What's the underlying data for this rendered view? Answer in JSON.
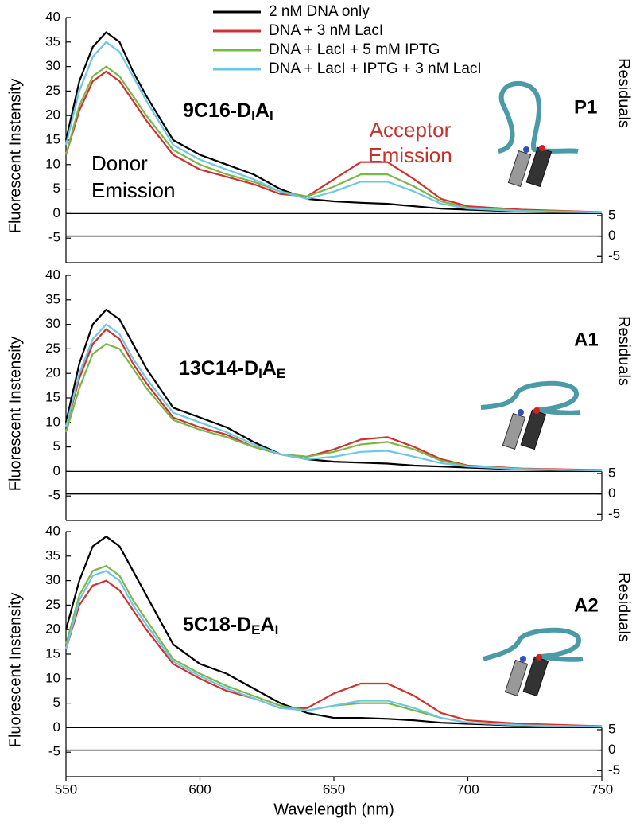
{
  "chart_data": [
    {
      "type": "line",
      "label": [
        "9C16-D",
        "I",
        "A",
        "I"
      ],
      "tag": "P1",
      "ylabel": "Fluorescent Instensity",
      "y2label": "Residuals",
      "annotations": [
        {
          "text": "Donor",
          "color": "#000000"
        },
        {
          "text": "Emission",
          "color": "#000000"
        },
        {
          "text": "Acceptor",
          "color": "#c8302c"
        },
        {
          "text": "Emission",
          "color": "#c8302c"
        }
      ],
      "x": [
        550,
        555,
        560,
        565,
        570,
        575,
        580,
        590,
        600,
        610,
        620,
        630,
        640,
        650,
        660,
        670,
        680,
        690,
        700,
        720,
        750
      ],
      "series": [
        {
          "name": "2 nM DNA only",
          "color": "#000000",
          "values": [
            15,
            27,
            34,
            37,
            35,
            29,
            24,
            15,
            12,
            10,
            8,
            5,
            3,
            2.5,
            2.2,
            2,
            1.5,
            1,
            0.8,
            0.4,
            0.2
          ]
        },
        {
          "name": "DNA + 3 nM LacI",
          "color": "#d0312d",
          "values": [
            12,
            21,
            27,
            29,
            27,
            23,
            19,
            12,
            9,
            7.5,
            6,
            4,
            3.5,
            7,
            10.5,
            10.5,
            7,
            3,
            1.5,
            0.8,
            0.3
          ]
        },
        {
          "name": "DNA + LacI + 5 mM IPTG",
          "color": "#7ab648",
          "values": [
            12,
            22,
            28,
            30,
            28,
            24,
            20,
            13,
            10,
            8,
            6.5,
            4.5,
            3.5,
            5.5,
            8,
            8,
            5.5,
            2.5,
            1.2,
            0.6,
            0.3
          ]
        },
        {
          "name": "DNA + LacI + IPTG + 3 nM LacI",
          "color": "#6ec6e6",
          "values": [
            14,
            25,
            32,
            35,
            33,
            28,
            23,
            14,
            11,
            9,
            7,
            4.5,
            3,
            4.5,
            6.5,
            6.5,
            4.5,
            2,
            1,
            0.5,
            0.2
          ]
        }
      ],
      "xlim": [
        550,
        750
      ],
      "ylim": [
        -10,
        40
      ],
      "yticks": [
        -5,
        0,
        5,
        10,
        15,
        20,
        25,
        30,
        35,
        40
      ],
      "y2lim": [
        -6.5,
        5.5
      ],
      "y2ticks": [
        5,
        0,
        -5
      ]
    },
    {
      "type": "line",
      "label": [
        "13C14-D",
        "I",
        "A",
        "E"
      ],
      "tag": "A1",
      "ylabel": "Fluorescent Instensity",
      "y2label": "Residuals",
      "x": [
        550,
        555,
        560,
        565,
        570,
        575,
        580,
        590,
        600,
        610,
        620,
        630,
        640,
        650,
        660,
        670,
        680,
        690,
        700,
        720,
        750
      ],
      "series": [
        {
          "color": "#000000",
          "values": [
            10,
            22,
            30,
            33,
            31,
            26,
            21,
            13,
            11,
            9,
            6,
            3.5,
            2.5,
            2,
            1.8,
            1.6,
            1.2,
            1,
            0.8,
            0.4,
            0.2
          ]
        },
        {
          "color": "#d0312d",
          "values": [
            9,
            19,
            26,
            29,
            27,
            22,
            18,
            11,
            9,
            7.5,
            5,
            3.5,
            3,
            4.5,
            6.5,
            7,
            5,
            2.5,
            1.2,
            0.6,
            0.3
          ]
        },
        {
          "color": "#7ab648",
          "values": [
            8,
            17,
            24,
            26,
            25,
            21,
            17,
            10.5,
            8.5,
            7,
            5,
            3.5,
            3,
            4,
            5.5,
            6,
            4.5,
            2.2,
            1.1,
            0.5,
            0.2
          ]
        },
        {
          "color": "#6ec6e6",
          "values": [
            9,
            20,
            27,
            30,
            28,
            23,
            19,
            12,
            10,
            8,
            5.5,
            3.5,
            2.5,
            3,
            4,
            4.2,
            3,
            1.7,
            1,
            0.5,
            0.2
          ]
        }
      ],
      "xlim": [
        550,
        750
      ],
      "ylim": [
        -10,
        40
      ],
      "yticks": [
        -5,
        0,
        5,
        10,
        15,
        20,
        25,
        30,
        35,
        40
      ],
      "y2lim": [
        -6.5,
        5.5
      ],
      "y2ticks": [
        5,
        0,
        -5
      ]
    },
    {
      "type": "line",
      "label": [
        "5C18-D",
        "E",
        "A",
        "I"
      ],
      "tag": "A2",
      "ylabel": "Fluorescent Instensity",
      "y2label": "Residuals",
      "xlabel": "Wavelength (nm)",
      "x": [
        550,
        555,
        560,
        565,
        570,
        575,
        580,
        590,
        600,
        610,
        620,
        630,
        640,
        650,
        660,
        670,
        680,
        690,
        700,
        720,
        750
      ],
      "series": [
        {
          "color": "#000000",
          "values": [
            20,
            30,
            37,
            39,
            37,
            32,
            27,
            17,
            13,
            11,
            8,
            5,
            3,
            2,
            2,
            1.8,
            1.5,
            1,
            0.8,
            0.4,
            0.2
          ]
        },
        {
          "color": "#d0312d",
          "values": [
            16,
            25,
            29,
            30,
            28,
            24,
            20,
            13,
            10,
            7.5,
            6,
            4,
            4,
            7,
            9,
            9,
            6.5,
            3,
            1.5,
            0.8,
            0.3
          ]
        },
        {
          "color": "#7ab648",
          "values": [
            17,
            27,
            32,
            33,
            31,
            26,
            22,
            14,
            11,
            8.5,
            6.5,
            4.5,
            3.5,
            4.5,
            5,
            5,
            3.5,
            2,
            1,
            0.5,
            0.2
          ]
        },
        {
          "color": "#6ec6e6",
          "values": [
            16,
            26,
            31,
            32,
            30,
            25,
            21,
            13.5,
            10.5,
            8,
            6,
            4,
            3.5,
            4.5,
            5.5,
            5.5,
            4,
            2,
            1,
            0.5,
            0.2
          ]
        }
      ],
      "xlim": [
        550,
        750
      ],
      "xticks": [
        550,
        600,
        650,
        700,
        750
      ],
      "ylim": [
        -10,
        40
      ],
      "yticks": [
        -5,
        0,
        5,
        10,
        15,
        20,
        25,
        30,
        35,
        40
      ],
      "y2lim": [
        -6.5,
        5.5
      ],
      "y2ticks": [
        5,
        0,
        -5
      ]
    }
  ]
}
